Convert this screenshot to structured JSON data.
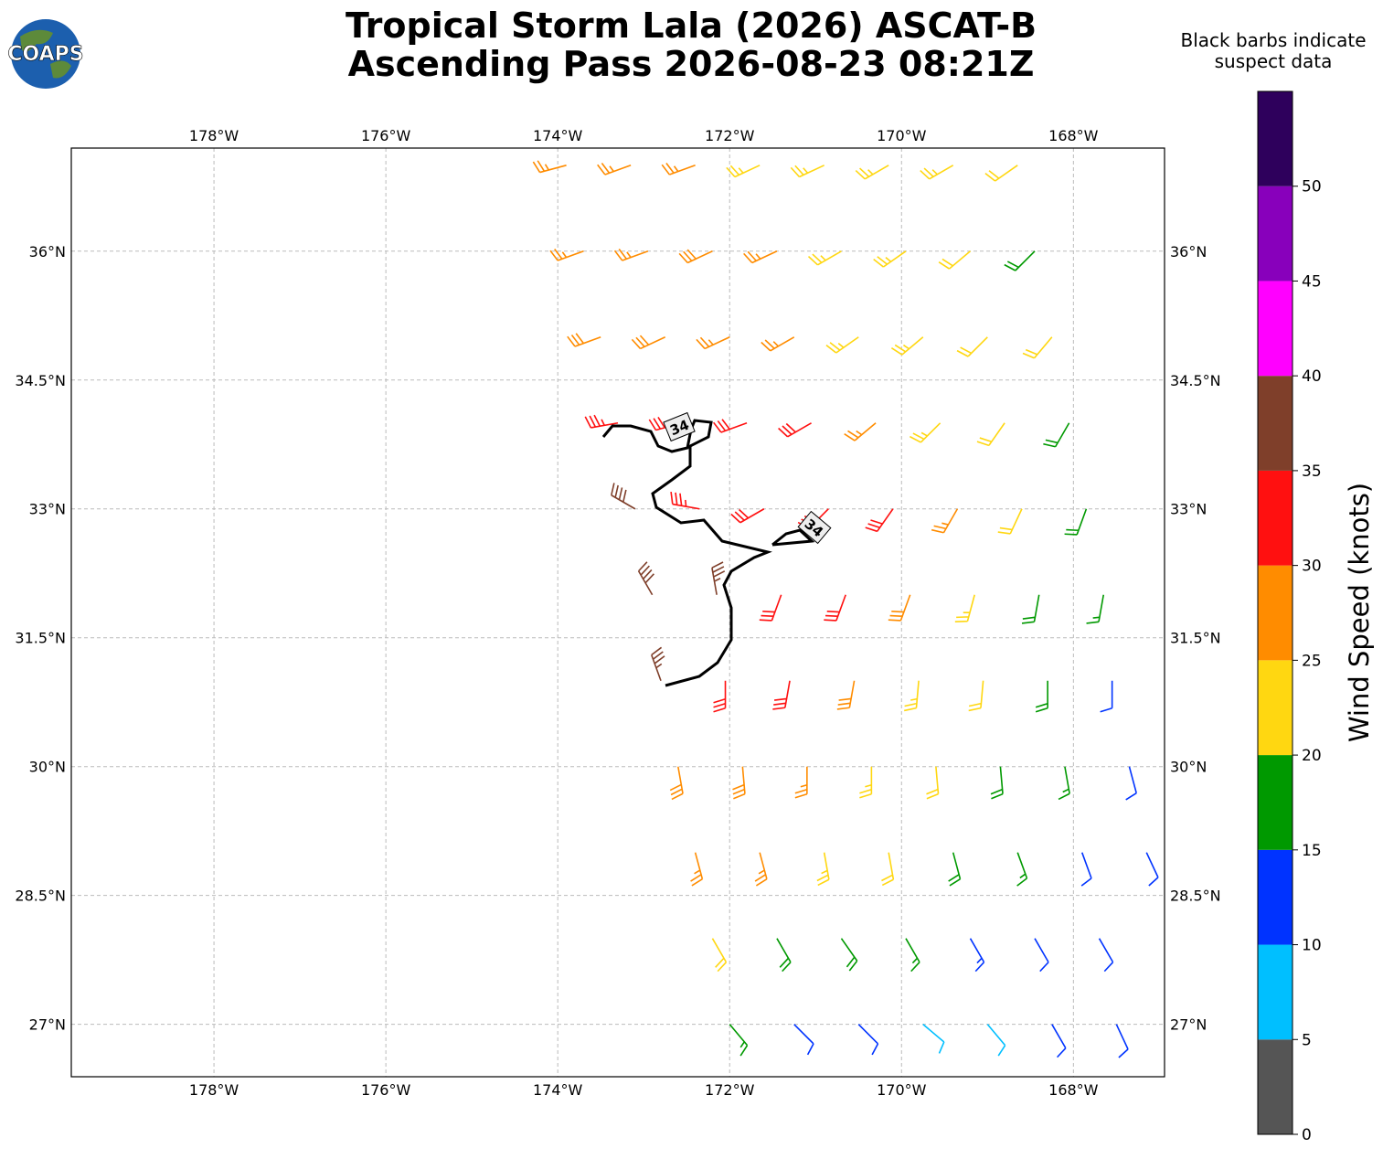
{
  "title": [
    "Tropical Storm Lala (2026) ASCAT-B",
    "Ascending Pass 2026-08-23 08:21Z"
  ],
  "note": [
    "Black barbs indicate",
    "suspect data"
  ],
  "logo": "COAPS",
  "map": {
    "lonlim": [
      -179.66,
      -166.94
    ],
    "latlim": [
      26.39,
      37.2
    ],
    "lonticks": [
      {
        "value": -178,
        "label": "178°W"
      },
      {
        "value": -176,
        "label": "176°W"
      },
      {
        "value": -174,
        "label": "174°W"
      },
      {
        "value": -172,
        "label": "172°W"
      },
      {
        "value": -170,
        "label": "170°W"
      },
      {
        "value": -168,
        "label": "168°W"
      }
    ],
    "latticks": [
      {
        "value": 36,
        "label": "36°N"
      },
      {
        "value": 34.5,
        "label": "34.5°N"
      },
      {
        "value": 33,
        "label": "33°N"
      },
      {
        "value": 31.5,
        "label": "31.5°N"
      },
      {
        "value": 30,
        "label": "30°N"
      },
      {
        "value": 28.5,
        "label": "28.5°N"
      },
      {
        "value": 27,
        "label": "27°N"
      }
    ],
    "contour_labels": [
      "34",
      "34"
    ]
  },
  "barbs": {
    "rows": [
      {
        "lat": 37,
        "lon": [
          -173.9,
          -173.15,
          -172.4,
          -171.65,
          -170.9,
          -170.15,
          -169.4,
          -168.65
        ],
        "speed": [
          27,
          27,
          27,
          23,
          23,
          23,
          23,
          22
        ],
        "dir": [
          255,
          250,
          250,
          245,
          245,
          240,
          240,
          235
        ]
      },
      {
        "lat": 36,
        "lon": [
          -173.7,
          -172.95,
          -172.2,
          -171.45,
          -170.7,
          -169.95,
          -169.2,
          -168.45
        ],
        "speed": [
          27,
          27,
          28,
          27,
          23,
          23,
          22,
          18
        ],
        "dir": [
          250,
          250,
          245,
          245,
          240,
          235,
          230,
          225
        ]
      },
      {
        "lat": 35,
        "lon": [
          -173.5,
          -172.75,
          -172,
          -171.25,
          -170.5,
          -169.75,
          -169,
          -168.25
        ],
        "speed": [
          28,
          28,
          27,
          26,
          23,
          23,
          22,
          22
        ],
        "dir": [
          250,
          245,
          245,
          240,
          235,
          230,
          225,
          220
        ]
      },
      {
        "lat": 34,
        "lon": [
          -173.3,
          -172.55,
          -171.8,
          -171.05,
          -170.3,
          -169.55,
          -168.8,
          -168.05
        ],
        "speed": [
          33,
          32,
          32,
          31,
          27,
          23,
          22,
          18
        ],
        "dir": [
          260,
          255,
          250,
          240,
          230,
          225,
          215,
          210
        ]
      },
      {
        "lat": 33,
        "lon": [
          -173.1,
          -172.35,
          -171.6,
          -170.85,
          -170.1,
          -169.35,
          -168.6,
          -167.85
        ],
        "speed": [
          38,
          33,
          32,
          32,
          31,
          27,
          22,
          18
        ],
        "dir": [
          300,
          280,
          240,
          225,
          215,
          210,
          205,
          200
        ]
      },
      {
        "lat": 32,
        "lon": [
          -172.9,
          -172.15,
          -171.4,
          -170.65,
          -169.9,
          -169.15,
          -168.4,
          -167.65
        ],
        "speed": [
          38,
          37,
          32,
          32,
          28,
          23,
          18,
          17
        ],
        "dir": [
          330,
          350,
          200,
          200,
          200,
          195,
          190,
          190
        ]
      },
      {
        "lat": 31,
        "lon": [
          -172.8,
          -172.05,
          -171.3,
          -170.55,
          -169.8,
          -169.05,
          -168.3,
          -167.55
        ],
        "speed": [
          37,
          32,
          31,
          28,
          23,
          22,
          18,
          12
        ],
        "dir": [
          340,
          180,
          190,
          190,
          185,
          185,
          180,
          180
        ]
      },
      {
        "lat": 30,
        "lon": [
          -172.6,
          -171.85,
          -171.1,
          -170.35,
          -169.6,
          -168.85,
          -168.1,
          -167.35
        ],
        "speed": [
          28,
          28,
          26,
          23,
          22,
          18,
          17,
          12
        ],
        "dir": [
          170,
          175,
          180,
          180,
          175,
          175,
          170,
          165
        ]
      },
      {
        "lat": 29,
        "lon": [
          -172.4,
          -171.65,
          -170.9,
          -170.15,
          -169.4,
          -168.65,
          -167.9,
          -167.15
        ],
        "speed": [
          27,
          26,
          23,
          22,
          18,
          17,
          12,
          12
        ],
        "dir": [
          165,
          165,
          170,
          170,
          165,
          160,
          160,
          155
        ]
      },
      {
        "lat": 28,
        "lon": [
          -172.2,
          -171.45,
          -170.7,
          -169.95,
          -169.2,
          -168.45,
          -167.7
        ],
        "speed": [
          22,
          18,
          18,
          17,
          13,
          12,
          12
        ],
        "dir": [
          150,
          150,
          145,
          150,
          150,
          150,
          150
        ]
      },
      {
        "lat": 27,
        "lon": [
          -172,
          -171.25,
          -170.5,
          -169.75,
          -169,
          -168.25,
          -167.5
        ],
        "speed": [
          17,
          12,
          12,
          8,
          8,
          12,
          12
        ],
        "dir": [
          140,
          135,
          135,
          130,
          140,
          150,
          155
        ]
      }
    ]
  },
  "colorbar": {
    "label": "Wind Speed (knots)",
    "range": [
      0,
      55
    ],
    "ticks": [
      0,
      5,
      10,
      15,
      20,
      25,
      30,
      35,
      40,
      45,
      50
    ],
    "colors": [
      "#555555",
      "#00bfff",
      "#0033ff",
      "#009900",
      "#ffd711",
      "#ff8c00",
      "#ff1010",
      "#7f3f2a",
      "#ff00ff",
      "#8800bb",
      "#2e005c"
    ]
  }
}
